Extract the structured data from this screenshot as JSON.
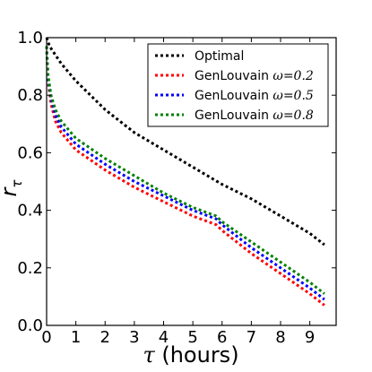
{
  "chart_data": {
    "type": "line",
    "xlabel": "τ (hours)",
    "ylabel": "r_τ",
    "xlim": [
      0,
      9.9
    ],
    "ylim": [
      0,
      1.0
    ],
    "x_ticks": [
      "0",
      "1",
      "2",
      "3",
      "4",
      "5",
      "6",
      "7",
      "8",
      "9"
    ],
    "y_ticks": [
      "0.0",
      "0.2",
      "0.4",
      "0.6",
      "0.8",
      "1.0"
    ],
    "legend_position": "top-right",
    "grid": false,
    "series": [
      {
        "name": "Optimal",
        "name_main": "Optimal",
        "name_omega": "",
        "color": "#000000",
        "x": [
          0,
          0.1,
          0.3,
          0.5,
          1,
          2,
          3,
          4,
          5,
          6,
          7,
          8,
          9,
          9.5
        ],
        "y": [
          1.0,
          0.97,
          0.94,
          0.91,
          0.85,
          0.75,
          0.67,
          0.61,
          0.55,
          0.49,
          0.44,
          0.38,
          0.32,
          0.28
        ]
      },
      {
        "name": "GenLouvain ω=0.2",
        "name_main": "GenLouvain ",
        "name_omega": "ω=0.2",
        "color": "#ff0000",
        "x": [
          0,
          0.05,
          0.15,
          0.3,
          0.5,
          1,
          2,
          3,
          4,
          5,
          5.8,
          6,
          7,
          8,
          9,
          9.5
        ],
        "y": [
          0.97,
          0.85,
          0.77,
          0.71,
          0.67,
          0.61,
          0.54,
          0.48,
          0.43,
          0.38,
          0.35,
          0.33,
          0.25,
          0.18,
          0.11,
          0.07
        ]
      },
      {
        "name": "GenLouvain ω=0.5",
        "name_main": "GenLouvain ",
        "name_omega": "ω=0.5",
        "color": "#0000ff",
        "x": [
          0,
          0.05,
          0.15,
          0.3,
          0.5,
          1,
          2,
          3,
          4,
          5,
          5.8,
          6,
          7,
          8,
          9,
          9.5
        ],
        "y": [
          0.97,
          0.86,
          0.79,
          0.73,
          0.69,
          0.63,
          0.56,
          0.5,
          0.45,
          0.4,
          0.37,
          0.35,
          0.27,
          0.2,
          0.13,
          0.09
        ]
      },
      {
        "name": "GenLouvain ω=0.8",
        "name_main": "GenLouvain ",
        "name_omega": "ω=0.8",
        "color": "#008000",
        "x": [
          0,
          0.05,
          0.15,
          0.3,
          0.5,
          1,
          2,
          3,
          4,
          5,
          5.8,
          6,
          7,
          8,
          9,
          9.5
        ],
        "y": [
          0.97,
          0.87,
          0.8,
          0.75,
          0.71,
          0.65,
          0.58,
          0.52,
          0.46,
          0.41,
          0.38,
          0.36,
          0.29,
          0.22,
          0.15,
          0.11
        ]
      }
    ]
  }
}
